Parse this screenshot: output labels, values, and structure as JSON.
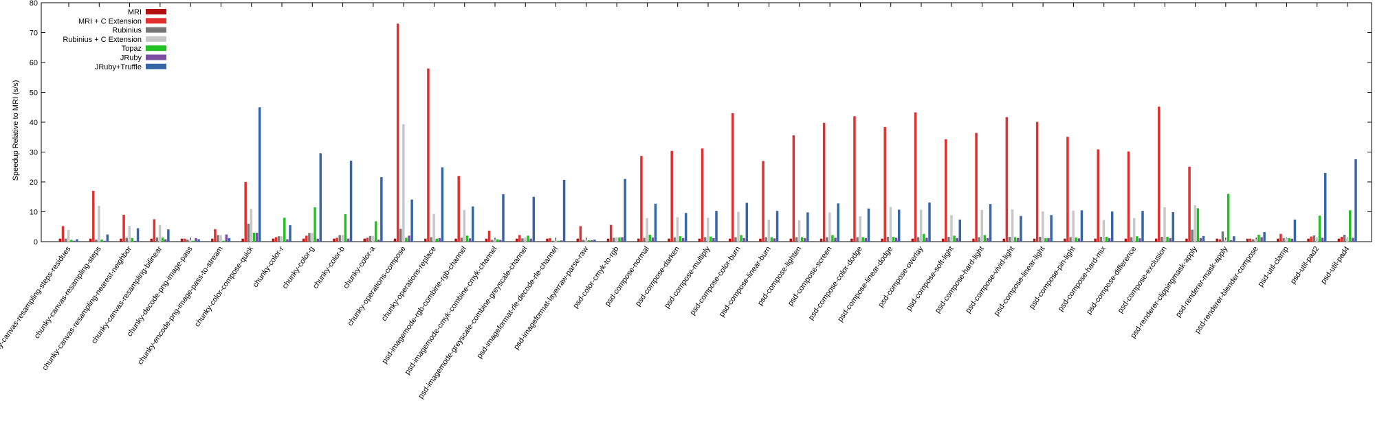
{
  "chart_data": {
    "type": "bar",
    "ylabel": "Speedup Relative to MRI (s/s)",
    "xlabel": "",
    "title": "",
    "ylim": [
      0,
      80
    ],
    "yticks": [
      0,
      10,
      20,
      30,
      40,
      50,
      60,
      70,
      80
    ],
    "legend_position": "top-left",
    "grid": false,
    "categories": [
      "chunky-canvas-resampling-steps-residues",
      "chunky-canvas-resampling-steps",
      "chunky-canvas-resampling-nearest-neighbor",
      "chunky-canvas-resampling-bilinear",
      "chunky-decode-png-image-pass",
      "chunky-encode-png-image-pass-to-stream",
      "chunky-color-compose-quick",
      "chunky-color-r",
      "chunky-color-g",
      "chunky-color-b",
      "chunky-color-a",
      "chunky-operations-compose",
      "chunky-operations-replace",
      "psd-imagemode-rgb-combine-rgb-channel",
      "psd-imagemode-cmyk-combine-cmyk-channel",
      "psd-imagemode-greyscale-combine-greyscale-channel",
      "psd-imageformat-rle-decode-rle-channel",
      "psd-imageformat-layerraw-parse-raw",
      "psd-color-cmyk-to-rgb",
      "psd-compose-normal",
      "psd-compose-darken",
      "psd-compose-multiply",
      "psd-compose-color-burn",
      "psd-compose-linear-burn",
      "psd-compose-lighten",
      "psd-compose-screen",
      "psd-compose-color-dodge",
      "psd-compose-linear-dodge",
      "psd-compose-overlay",
      "psd-compose-soft-light",
      "psd-compose-hard-light",
      "psd-compose-vivid-light",
      "psd-compose-linear-light",
      "psd-compose-pin-light",
      "psd-compose-hard-mix",
      "psd-compose-difference",
      "psd-compose-exclusion",
      "psd-renderer-clippingmask-apply",
      "psd-renderer-mask-apply",
      "psd-renderer-blender-compose",
      "psd-util-clamp",
      "psd-util-pad2",
      "psd-util-pad4"
    ],
    "series": [
      {
        "name": "MRI",
        "color": "#b40f0f",
        "values": [
          1,
          1,
          1,
          1,
          1,
          1,
          1,
          1,
          1,
          1,
          1,
          1,
          1,
          1,
          1,
          1,
          1,
          1,
          1,
          1,
          1,
          1,
          1,
          1,
          1,
          1,
          1,
          1,
          1,
          1,
          1,
          1,
          1,
          1,
          1,
          1,
          1,
          1,
          1,
          1,
          1,
          1,
          1
        ]
      },
      {
        "name": "MRI + C Extension",
        "color": "#e03030",
        "values": [
          5.2,
          17,
          9,
          7.5,
          1,
          4.2,
          20,
          1.5,
          2,
          1.3,
          1.3,
          73,
          58,
          22,
          3.7,
          2.2,
          1.2,
          5.2,
          5.6,
          28.7,
          30.4,
          31.2,
          43,
          27,
          35.6,
          39.8,
          42,
          38.4,
          43.3,
          34.3,
          36.4,
          41.7,
          40.1,
          35.1,
          30.9,
          30.2,
          45.2,
          25.1,
          0.8,
          1,
          2.6,
          1.7,
          1.6
        ]
      },
      {
        "name": "Rubinius",
        "color": "#777777",
        "values": [
          1,
          0.7,
          1.3,
          1.4,
          0.7,
          2.2,
          6,
          1.8,
          2.9,
          2.2,
          1.9,
          4.3,
          1.5,
          1.3,
          0.6,
          1.1,
          0.3,
          0.6,
          1.3,
          1.3,
          1.4,
          1.5,
          1.5,
          1.5,
          1.5,
          1.5,
          1.5,
          1.6,
          1.5,
          1.6,
          1.5,
          1.6,
          1.6,
          1.5,
          1.6,
          1.5,
          1.6,
          4,
          3.4,
          0.8,
          1.2,
          2.1,
          2.3
        ]
      },
      {
        "name": "Rubinius + C Extension",
        "color": "#c8c8c8",
        "values": [
          3.9,
          12,
          5.3,
          5.6,
          0.6,
          2.2,
          11,
          1.8,
          2.9,
          2.2,
          1.9,
          39.3,
          9.3,
          10.6,
          0.6,
          1.4,
          0.3,
          0.6,
          1.3,
          7.9,
          8.2,
          8,
          10,
          7.4,
          7.2,
          9.8,
          8.5,
          11.6,
          10.7,
          8.9,
          10.6,
          10.8,
          10.1,
          10.4,
          7.3,
          7.9,
          11.5,
          12.2,
          0.6,
          0.8,
          1.2,
          1.2,
          1.2
        ]
      },
      {
        "name": "Topaz",
        "color": "#22c022",
        "values": [
          0.6,
          0.7,
          1.2,
          1.4,
          0.3,
          0.3,
          3,
          8,
          11.5,
          9.2,
          6.8,
          1.3,
          1,
          2,
          0.8,
          2,
          0.3,
          0.5,
          1.4,
          2.3,
          1.8,
          1.7,
          2.2,
          1.5,
          1.5,
          2.2,
          1.5,
          1.6,
          2.6,
          2,
          2.2,
          1.5,
          1.2,
          1.4,
          1.6,
          1.8,
          1.6,
          11.2,
          16,
          2.3,
          1.2,
          8.7,
          10.5
        ]
      },
      {
        "name": "JRuby",
        "color": "#7a4ea0",
        "values": [
          0.3,
          0.3,
          0.3,
          0.8,
          1.2,
          2.4,
          3,
          0.8,
          1,
          1,
          0.7,
          2,
          1.2,
          1.1,
          0.6,
          1,
          0.4,
          0.5,
          1.5,
          1.4,
          1.2,
          1.2,
          1.2,
          1.1,
          1.2,
          1.3,
          1.2,
          1.3,
          1.3,
          1.2,
          1.2,
          1.2,
          1.2,
          1.1,
          1.2,
          1.1,
          1.2,
          1.2,
          0.5,
          1.5,
          1,
          1.3,
          1.3
        ]
      },
      {
        "name": "JRuby+Truffle",
        "color": "#3565a5",
        "values": [
          0.8,
          2.4,
          4.5,
          4.1,
          0.8,
          1.2,
          45,
          5.5,
          29.6,
          27.1,
          21.6,
          14.1,
          24.9,
          11.8,
          15.9,
          15,
          20.7,
          0.7,
          21,
          12.7,
          9.6,
          10.3,
          13,
          10.3,
          9.8,
          12.8,
          11.1,
          10.7,
          13.1,
          7.4,
          12.6,
          8.6,
          8.9,
          10.5,
          10.1,
          10.3,
          9.9,
          1.9,
          1.8,
          3.2,
          7.4,
          23,
          27.6
        ]
      }
    ]
  }
}
